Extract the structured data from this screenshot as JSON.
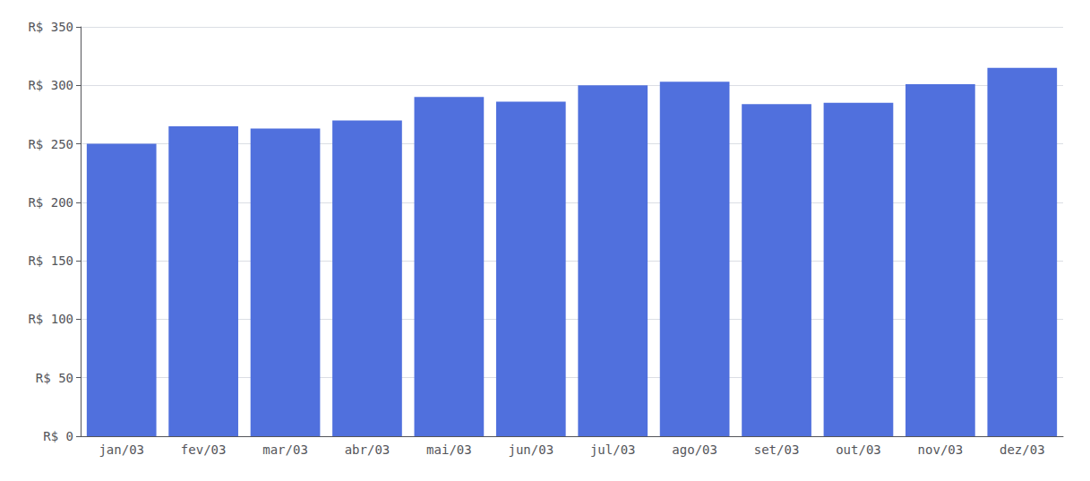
{
  "chart_data": {
    "type": "bar",
    "categories": [
      "jan/03",
      "fev/03",
      "mar/03",
      "abr/03",
      "mai/03",
      "jun/03",
      "jul/03",
      "ago/03",
      "set/03",
      "out/03",
      "nov/03",
      "dez/03"
    ],
    "values": [
      250,
      265,
      263,
      270,
      290,
      286,
      300,
      303,
      284,
      285,
      301,
      315
    ],
    "ylim": [
      0,
      350
    ],
    "yticks": [
      {
        "value": 0,
        "label": "R$ 0"
      },
      {
        "value": 50,
        "label": "R$ 50"
      },
      {
        "value": 100,
        "label": "R$ 100"
      },
      {
        "value": 150,
        "label": "R$ 150"
      },
      {
        "value": 200,
        "label": "R$ 200"
      },
      {
        "value": 250,
        "label": "R$ 250"
      },
      {
        "value": 300,
        "label": "R$ 300"
      },
      {
        "value": 350,
        "label": "R$ 350"
      }
    ],
    "grid": true
  }
}
